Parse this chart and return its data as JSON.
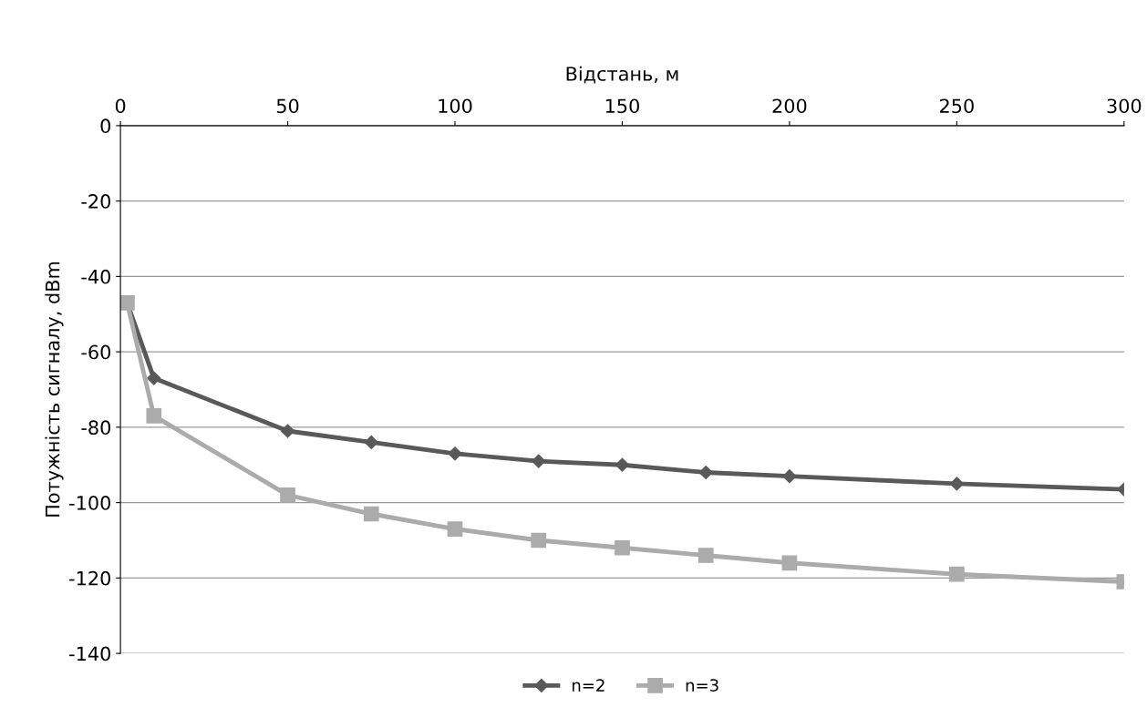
{
  "chart_data": {
    "type": "line",
    "xlabel": "Відстань, м",
    "ylabel": "Потужність сигналу, dBm",
    "xlim": [
      0,
      300
    ],
    "xticks": [
      0,
      50,
      100,
      150,
      200,
      250,
      300
    ],
    "ylim": [
      -140,
      0
    ],
    "yticks": [
      -140,
      -120,
      -100,
      -80,
      -60,
      -40,
      -20,
      0
    ],
    "grid": "y",
    "legend": "bottom",
    "series": [
      {
        "name": "n=2",
        "color": "#595959",
        "marker": "diamond",
        "x": [
          2,
          10,
          50,
          75,
          100,
          125,
          150,
          175,
          200,
          250,
          300
        ],
        "values": [
          -47,
          -67,
          -81,
          -84,
          -87,
          -89,
          -90,
          -92,
          -93,
          -95,
          -96.5
        ]
      },
      {
        "name": "n=3",
        "color": "#ababab",
        "marker": "square",
        "x": [
          2,
          10,
          50,
          75,
          100,
          125,
          150,
          175,
          200,
          250,
          300
        ],
        "values": [
          -47,
          -77,
          -98,
          -103,
          -107,
          -110,
          -112,
          -114,
          -116,
          -119,
          -121
        ]
      }
    ]
  }
}
